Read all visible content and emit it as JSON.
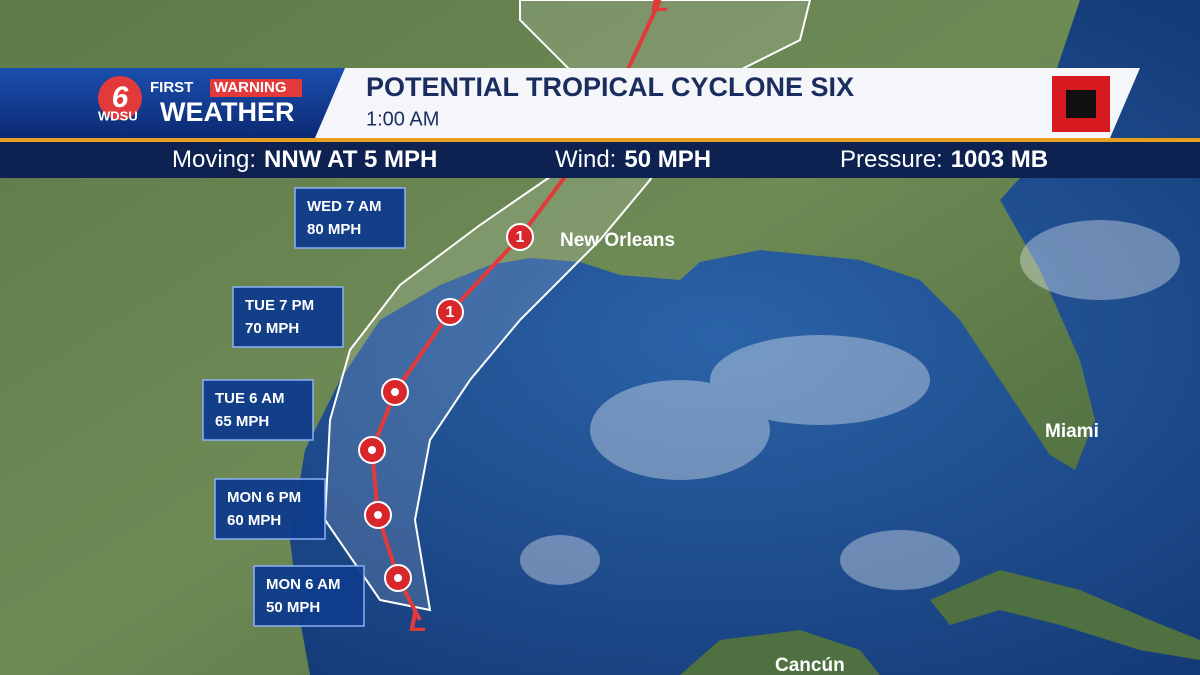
{
  "header": {
    "logo": {
      "number": "6",
      "first": "FIRST",
      "warning": "WARNING",
      "station": "WDSU",
      "brand": "WEATHER"
    },
    "title": "POTENTIAL TROPICAL CYCLONE SIX",
    "time": "1:00 AM"
  },
  "stats": [
    {
      "label": "Moving:",
      "value": "NNW AT 5 MPH"
    },
    {
      "label": "Wind:",
      "value": "50 MPH"
    },
    {
      "label": "Pressure:",
      "value": "1003 MB"
    }
  ],
  "forecast_points": [
    {
      "time": "WED 7 AM",
      "wind": "80 MPH"
    },
    {
      "time": "TUE 7 PM",
      "wind": "70 MPH"
    },
    {
      "time": "TUE 6 AM",
      "wind": "65 MPH"
    },
    {
      "time": "MON 6 PM",
      "wind": "60 MPH"
    },
    {
      "time": "MON 6 AM",
      "wind": "50 MPH"
    }
  ],
  "track_symbols": [
    "L",
    "1",
    "1",
    "L"
  ],
  "cities": [
    "New Orleans",
    "Miami",
    "Cancún"
  ]
}
